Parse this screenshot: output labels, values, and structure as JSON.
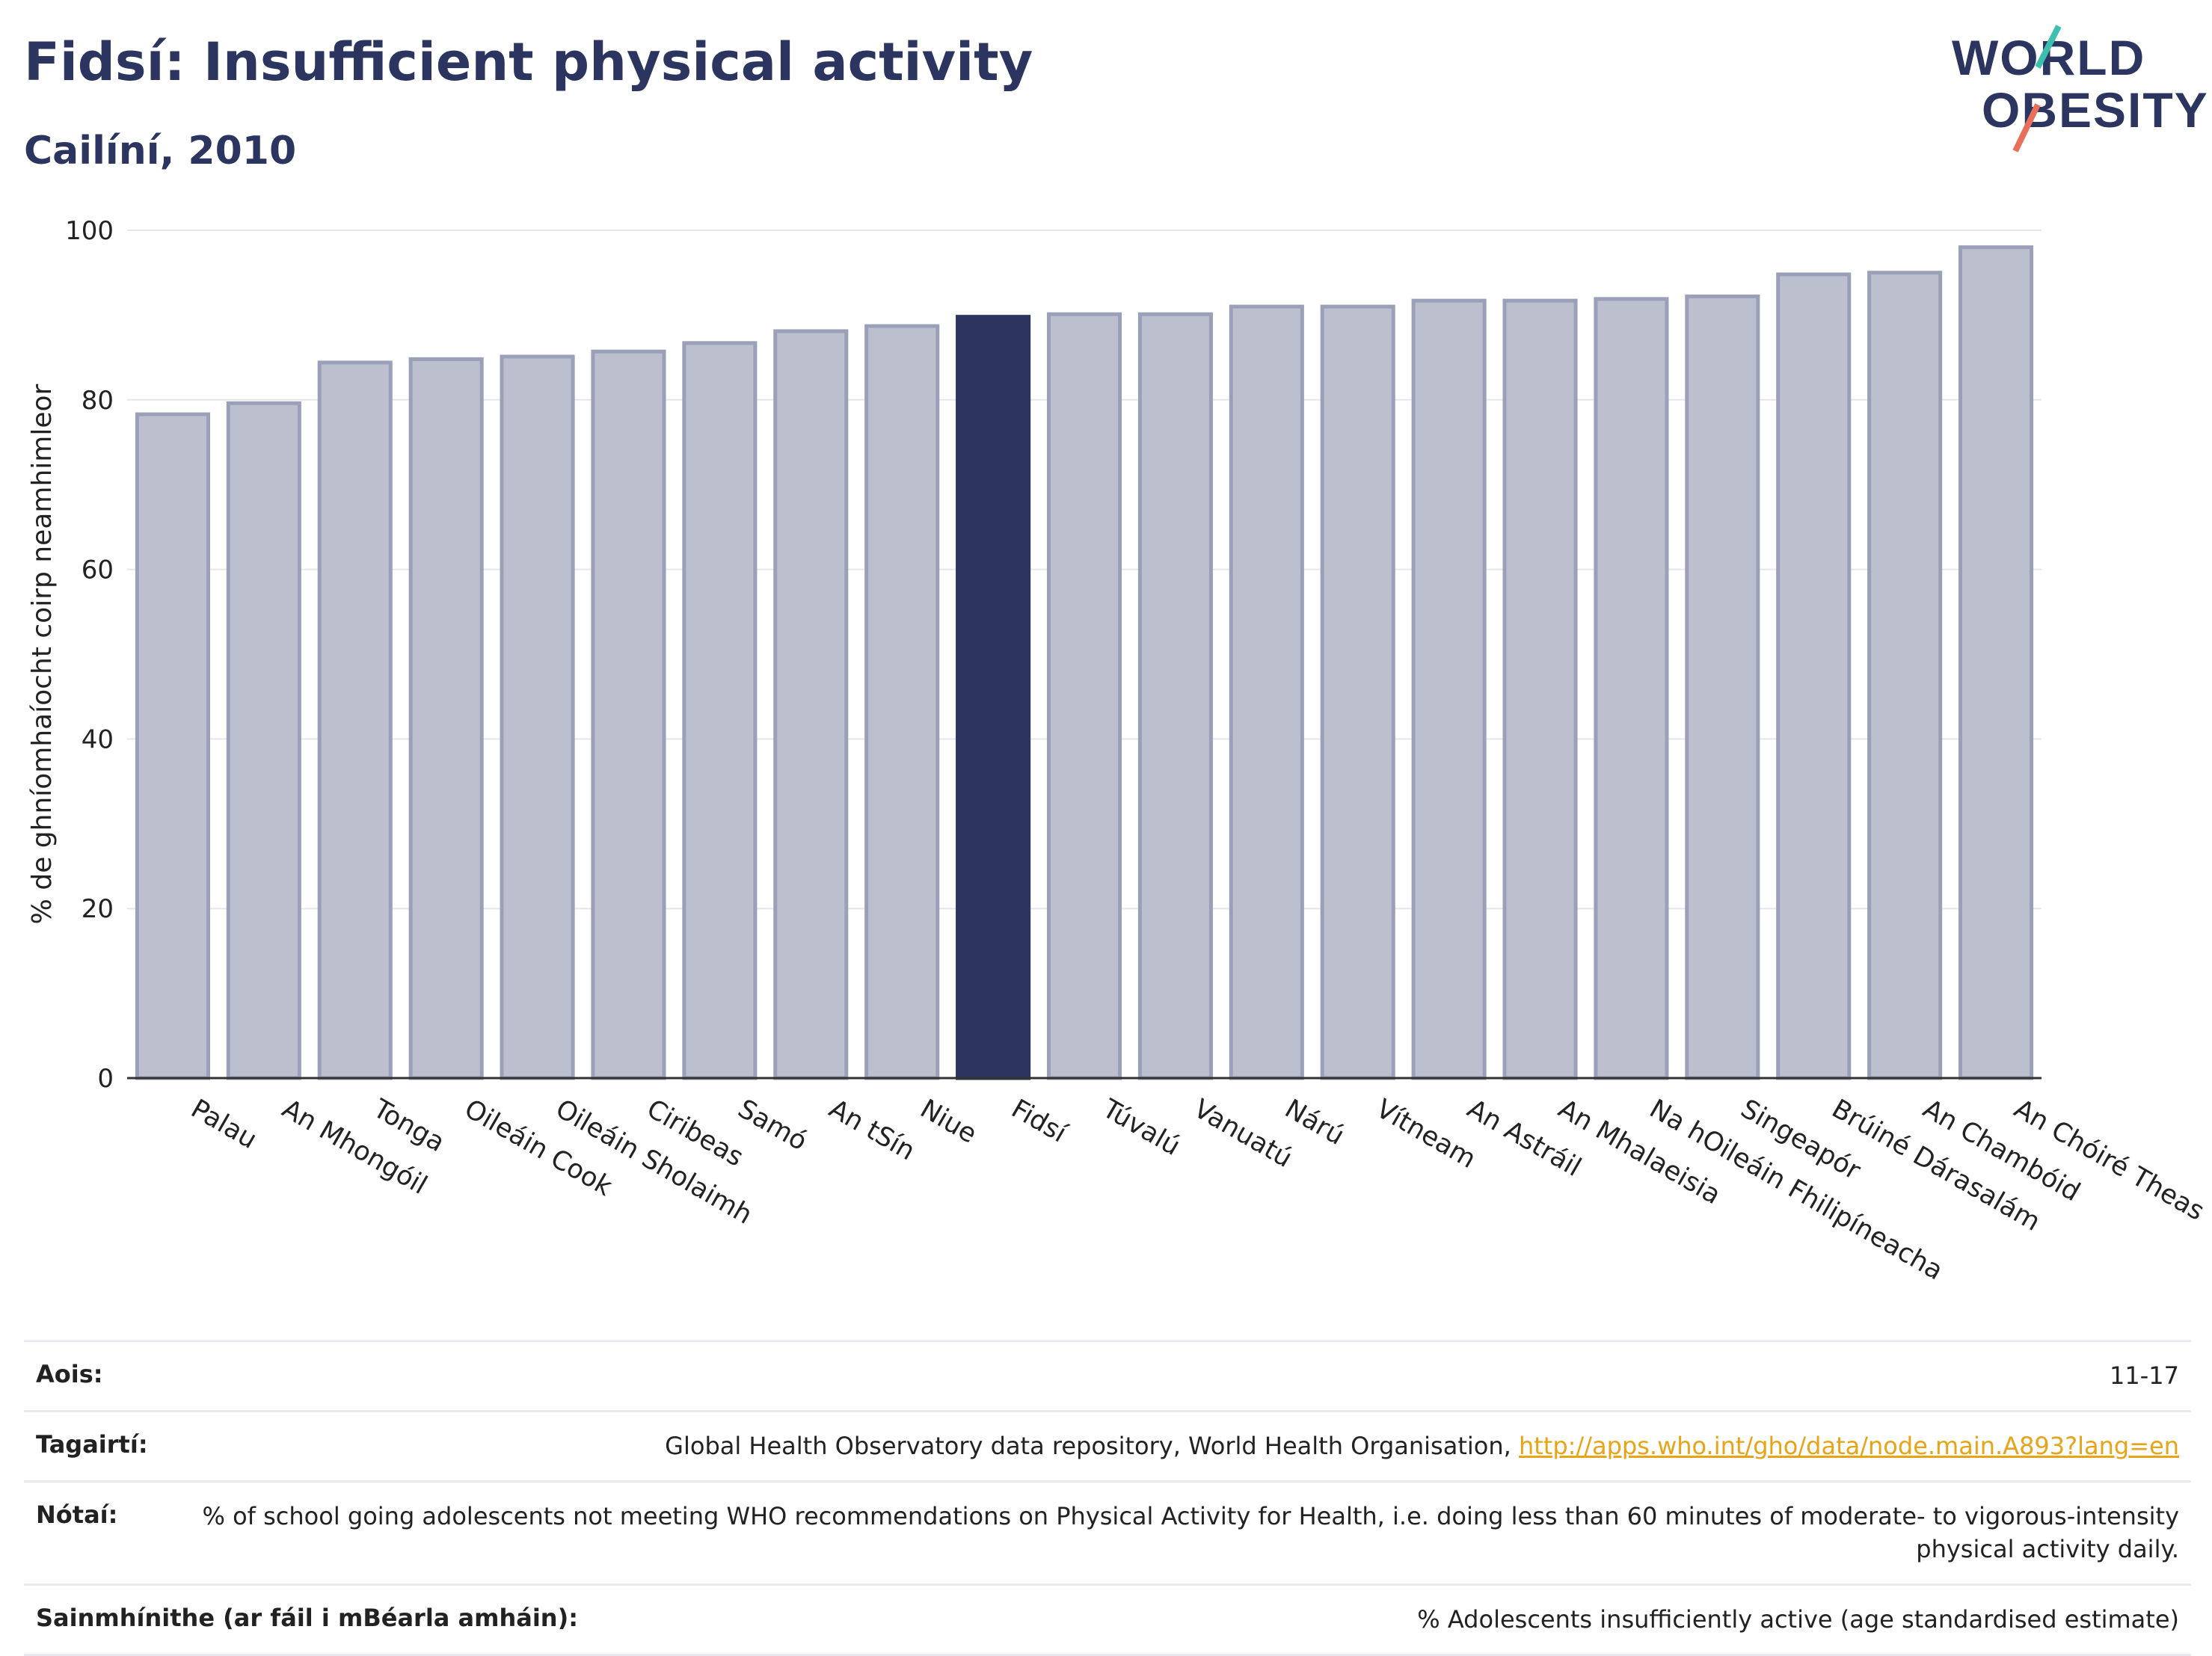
{
  "header": {
    "title": "Fidsí: Insufficient physical activity",
    "subtitle": "Cailíní, 2010"
  },
  "logo": {
    "line1": "WORLD",
    "line2": "OBESITY"
  },
  "colors": {
    "highlight": "#2b3560",
    "bar": "#bcc0ce",
    "bar_edge": "#9aa0b8",
    "link": "#e8a317"
  },
  "chart_data": {
    "type": "bar",
    "ylabel": "% de ghníomhaíocht coirp neamhimleor",
    "xlabel": "",
    "ylim": [
      0,
      100
    ],
    "yticks": [
      0,
      20,
      40,
      60,
      80,
      100
    ],
    "grid": true,
    "highlight": "Fidsí",
    "categories": [
      "Palau",
      "An Mhongóil",
      "Tonga",
      "Oileáin Cook",
      "Oileáin Sholaimh",
      "Ciribeas",
      "Samó",
      "An tSín",
      "Niue",
      "Fidsí",
      "Túvalú",
      "Vanuatú",
      "Nárú",
      "Vítneam",
      "An Astráil",
      "An Mhalaeisia",
      "Na hOileáin Fhilipíneacha",
      "Singeapór",
      "Brúiné Dárasalám",
      "An Chambóid",
      "An Chóiré Theas"
    ],
    "values": [
      78.3,
      79.6,
      84.4,
      84.8,
      85.1,
      85.7,
      86.7,
      88.1,
      88.7,
      89.8,
      90.1,
      90.1,
      91.0,
      91.0,
      91.7,
      91.7,
      91.9,
      92.2,
      94.8,
      95.0,
      98.0
    ]
  },
  "meta": {
    "rows": [
      {
        "label": "Aois:",
        "value": "11-17"
      },
      {
        "label": "Tagairtí:",
        "value": "Global Health Observatory data repository, World Health Organisation, ",
        "link": "http://apps.who.int/gho/data/node.main.A893?lang=en"
      },
      {
        "label": "Nótaí:",
        "value": "% of school going adolescents not meeting WHO recommendations on Physical Activity for Health, i.e. doing less than 60 minutes of moderate- to vigorous-intensity physical activity daily."
      },
      {
        "label": "Sainmhínithe (ar fáil i mBéarla amháin):",
        "value": "% Adolescents insufficiently active (age standardised estimate)"
      }
    ]
  }
}
